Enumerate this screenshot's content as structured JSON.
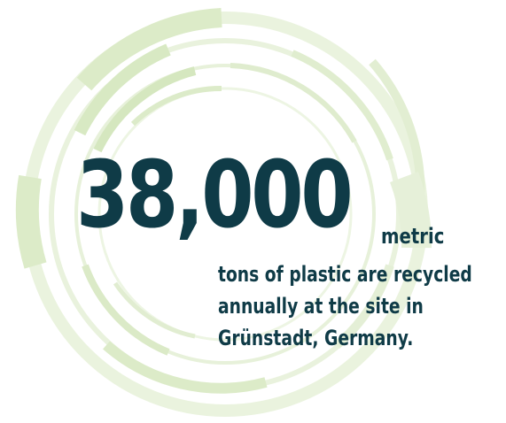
{
  "stat": {
    "number": "38,000",
    "unit": "metric",
    "caption_lines": [
      "tons of plastic are recycled",
      "annually at the site in",
      "Grünstadt, Germany."
    ]
  },
  "colors": {
    "text": "#0f3b47",
    "ring_light": "#e4efd5",
    "ring_mid": "#d3e6bd"
  },
  "decoration": {
    "icon": "concentric-rings-icon"
  }
}
